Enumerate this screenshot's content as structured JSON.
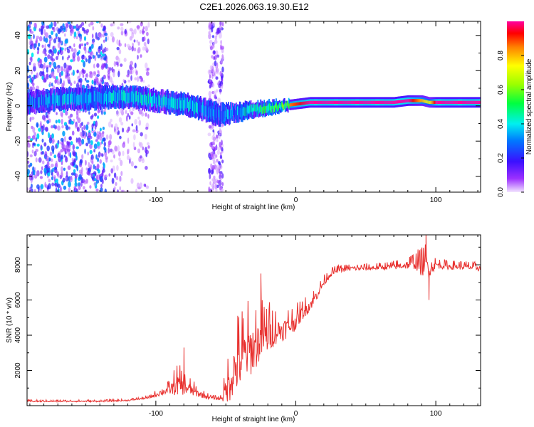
{
  "title": "C2E1.2026.063.19.30.E12",
  "chart_data": [
    {
      "type": "heatmap",
      "xlabel": "Height of straight line (km)",
      "ylabel": "Frequency (Hz)",
      "xlim": [
        -192,
        132
      ],
      "ylim": [
        -49,
        48
      ],
      "xticks": [
        -100,
        0,
        100
      ],
      "xtick_labels": [
        "-100",
        "0",
        "100"
      ],
      "yticks": [
        -40,
        -20,
        0,
        20,
        40
      ],
      "ytick_labels": [
        "-40",
        "-20",
        "0",
        "20",
        "40"
      ],
      "colorbar": {
        "label": "Normalized spectral amplitude",
        "range": [
          0,
          1
        ],
        "ticks": [
          0,
          0.2,
          0.4,
          0.6,
          0.8
        ],
        "tick_labels": [
          "0.0",
          "0.2",
          "0.4",
          "0.6",
          "0.8"
        ]
      },
      "ridge": {
        "x": [
          -192,
          -180,
          -165,
          -150,
          -135,
          -120,
          -110,
          -100,
          -90,
          -80,
          -70,
          -60,
          -52,
          -45,
          -38,
          -30,
          -20,
          -10,
          0,
          10,
          30,
          50,
          70,
          80,
          90,
          95,
          100,
          132
        ],
        "freq": [
          2,
          3,
          4,
          4,
          5,
          5,
          4,
          3,
          2,
          1,
          -1,
          -4,
          -5,
          -4,
          -3,
          -2,
          -1,
          0,
          1,
          2,
          2,
          2,
          2,
          3,
          3,
          2,
          2,
          2
        ],
        "width": [
          6,
          6,
          6,
          6,
          6,
          6,
          6,
          6,
          6,
          6,
          6,
          6,
          6,
          5,
          5,
          4,
          4,
          3,
          3,
          3,
          3,
          3,
          3,
          3,
          3,
          3,
          3,
          3
        ],
        "amplitude": [
          0.3,
          0.35,
          0.4,
          0.35,
          0.4,
          0.45,
          0.5,
          0.45,
          0.4,
          0.4,
          0.4,
          0.35,
          0.3,
          0.4,
          0.5,
          0.6,
          0.7,
          0.8,
          0.9,
          1.0,
          1.0,
          1.0,
          1.0,
          1.0,
          0.8,
          0.7,
          1.0,
          1.0
        ]
      },
      "noise_ranges": [
        {
          "x": [
            -192,
            -135
          ],
          "freq": [
            -49,
            48
          ],
          "amplitude": [
            0.05,
            0.4
          ]
        },
        {
          "x": [
            -135,
            -105
          ],
          "freq": [
            -49,
            48
          ],
          "amplitude": [
            0.02,
            0.2
          ]
        },
        {
          "x": [
            -62,
            -52
          ],
          "freq": [
            -49,
            48
          ],
          "amplitude": [
            0.02,
            0.2
          ]
        }
      ]
    },
    {
      "type": "line",
      "xlabel": "Height of straight line (km)",
      "ylabel": "SNR (10 * v/v)",
      "xlim": [
        -192,
        132
      ],
      "ylim": [
        0,
        9700
      ],
      "xticks": [
        -100,
        0,
        100
      ],
      "xtick_labels": [
        "-100",
        "0",
        "100"
      ],
      "yticks": [
        2000,
        4000,
        6000,
        8000
      ],
      "ytick_labels": [
        "2000",
        "4000",
        "6000",
        "8000"
      ],
      "color": "#e8302e",
      "series": [
        {
          "name": "SNR",
          "x": [
            -192,
            -160,
            -140,
            -120,
            -105,
            -95,
            -90,
            -85,
            -80,
            -75,
            -70,
            -65,
            -60,
            -55,
            -52,
            -48,
            -45,
            -40,
            -35,
            -30,
            -25,
            -20,
            -15,
            -10,
            -5,
            0,
            5,
            10,
            15,
            20,
            25,
            30,
            35,
            40,
            50,
            60,
            70,
            80,
            85,
            90,
            93,
            95,
            100,
            110,
            120,
            132
          ],
          "base": [
            250,
            250,
            250,
            300,
            450,
            800,
            900,
            1200,
            1100,
            900,
            700,
            550,
            450,
            400,
            550,
            1200,
            1900,
            2500,
            3000,
            3300,
            3800,
            4000,
            4200,
            4300,
            4500,
            4800,
            5300,
            5700,
            6300,
            7000,
            7500,
            7700,
            7750,
            7800,
            7800,
            7850,
            7900,
            8000,
            8100,
            7900,
            8100,
            7800,
            8000,
            7900,
            7900,
            7800
          ],
          "amp": [
            60,
            60,
            60,
            60,
            80,
            300,
            400,
            900,
            700,
            500,
            300,
            200,
            120,
            120,
            500,
            1500,
            2000,
            2300,
            2200,
            2000,
            1800,
            1500,
            1100,
            900,
            900,
            700,
            600,
            500,
            400,
            300,
            250,
            200,
            200,
            200,
            200,
            200,
            250,
            350,
            500,
            800,
            900,
            800,
            300,
            250,
            250,
            250
          ]
        }
      ],
      "annotations": [
        {
          "x": -80,
          "value": 3300
        },
        {
          "x": -25,
          "value": 7500
        },
        {
          "x": 93,
          "value": 9700
        },
        {
          "x": 95,
          "value": 6000
        }
      ]
    }
  ]
}
